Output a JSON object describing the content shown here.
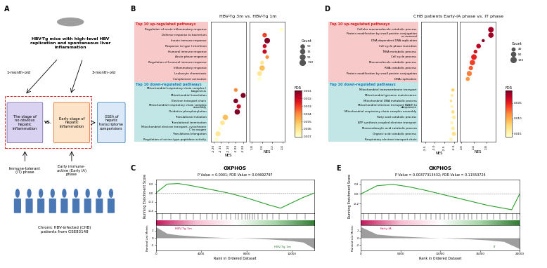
{
  "panel_labels": [
    "A",
    "B",
    "C",
    "D",
    "E"
  ],
  "diagram": {
    "mouse": "HBV-Tg mice with high-level HBV replication and spontaneous liver inflammation",
    "ages": [
      "1-month-old",
      "3-month-old"
    ],
    "stages": [
      "The stage of no obvious hepatic inflammation",
      "Early stage of hepatic inflammation"
    ],
    "vs": "VS.",
    "analysis": "GSEA of hepatic transcriptome comparisions",
    "phases": [
      "Immune-tolerant (IT) phase",
      "Early immune-active (Early IA) phase"
    ],
    "patients": "Chronic HBV-infected (CHB) patients from GSE83148"
  },
  "chart_data": [
    {
      "type": "dot",
      "title": "HBV-Tg 3m vs. HBV-Tg 1m",
      "x_label": "NES",
      "up": {
        "header": "Top 10 up-regulated pathways",
        "categories": [
          "Regulation of acute inflammatory response",
          "Defense response to bacterium",
          "Innate immune response",
          "Response to type I interferon",
          "Humoral immune response",
          "Acute phase response",
          "Regulation of humoral immune response",
          "Inflammatory response",
          "Leukocyte chemotaxis",
          "Complement activation"
        ],
        "nes": [
          2.38,
          2.05,
          2.1,
          2.05,
          2.05,
          2.1,
          2.0,
          2.0,
          1.95,
          1.95
        ],
        "count": [
          55,
          75,
          120,
          60,
          70,
          50,
          55,
          110,
          90,
          65
        ],
        "fdr": [
          0.007,
          0.003,
          0.001,
          0.002,
          0.002,
          0.004,
          0.006,
          0.005,
          0.006,
          0.007
        ],
        "xlim": [
          1.75,
          2.45
        ],
        "xticks": [
          1.8,
          2.0,
          2.2,
          2.4
        ]
      },
      "down": {
        "header": "Top 10 down-regulated pathways",
        "categories": [
          "Mitochondrial respiratory chain complex I biogenesis",
          "Mitochondrial translation",
          "Electron transport chain",
          "Mitochondrial respiratory chain complex assembly",
          "Oxidative phosphorylation",
          "Translational initiation",
          "Translational termination",
          "Mitochondrial electron transport, cytochrome C to oxygen",
          "Translational elongation",
          "Regulation of serine-type peptidase activity"
        ],
        "nes": [
          -2.05,
          -2.0,
          -2.05,
          -2.03,
          -2.04,
          -2.12,
          -2.14,
          -2.16,
          -2.17,
          -2.18
        ],
        "count": [
          55,
          95,
          80,
          70,
          110,
          110,
          80,
          50,
          95,
          60
        ],
        "fdr": [
          0.004,
          0.001,
          0.001,
          0.002,
          0.001,
          0.005,
          0.006,
          0.007,
          0.006,
          0.007
        ],
        "xlim": [
          -2.22,
          -1.98
        ],
        "xticks": [
          {
            "value": -2.2,
            "label": "-2.20"
          },
          -2.15,
          {
            "value": -2.1,
            "label": "-2.10"
          },
          -2.05,
          {
            "value": -2.0,
            "label": "-2.00"
          }
        ]
      },
      "size_legend": {
        "title": "Count",
        "values": [
          50,
          70,
          90,
          110
        ]
      },
      "colorbar": {
        "title": "FDR",
        "range": [
          0.001,
          0.007
        ],
        "ticks": [
          0.001,
          0.002,
          0.003,
          0.004,
          0.005,
          0.006,
          0.007
        ]
      }
    },
    {
      "type": "line",
      "title": "OXPHOS",
      "subtitle": "P Value < 0.0001; FDR Value = 0.04692797",
      "y_label": "Running Enrichment Score",
      "x_label": "Rank in Ordered Dataset",
      "color": "#2ca02c",
      "x": [
        0,
        1000,
        2000,
        3000,
        4000,
        5000,
        6000,
        7000,
        8000,
        9000,
        10000,
        11000,
        12000,
        13000,
        14000
      ],
      "values": [
        0.0,
        0.2,
        0.21,
        0.17,
        0.12,
        0.07,
        0.02,
        -0.04,
        -0.11,
        -0.19,
        -0.27,
        -0.34,
        -0.22,
        -0.1,
        0.0
      ],
      "xlim": [
        0,
        14000
      ],
      "xticks": [
        0,
        4000,
        8000,
        12000
      ],
      "ylim": [
        -0.45,
        0.3
      ],
      "yticks": [
        -0.4,
        -0.2,
        0.0,
        0.2
      ],
      "hits": [
        150,
        600,
        1300,
        2100,
        2700,
        3300,
        3900,
        4500,
        5000,
        5400,
        5800,
        6200,
        6600,
        7000,
        7300,
        7600,
        7900,
        8100,
        8300,
        8500,
        8700,
        9000,
        9400,
        9800,
        10300,
        10900,
        11600,
        12400,
        13200
      ],
      "metric": {
        "y_label": "Ranked List Metric",
        "x": [
          0,
          1000,
          2000,
          3000,
          4000,
          5000,
          6000,
          7000,
          8000,
          9000,
          10000,
          11000,
          12000,
          13000,
          14000
        ],
        "values": [
          3.0,
          1.2,
          0.8,
          0.55,
          0.35,
          0.2,
          0.08,
          0.0,
          -0.08,
          -0.2,
          -0.35,
          -0.55,
          -0.8,
          -1.2,
          -3.0
        ],
        "ylim": [
          -3.5,
          3.5
        ],
        "yticks": [
          -2,
          0,
          2
        ]
      },
      "groups": [
        "HBV-Tg 3m",
        "HBV-Tg 1m"
      ]
    },
    {
      "type": "dot",
      "title": "CHB patients Early-IA phase vs. IT phase",
      "x_label": "NES",
      "up": {
        "header": "Top 10 up-regulated pathways",
        "categories": [
          "Cellular macromolecule catabolic process",
          "Protein modification by small protein conjugation or removal",
          "DNA dependent DNA replication",
          "Cell cycle phase transition",
          "TRNA metabolic process",
          "Cell cycle process",
          "Macromolecule catabolic process",
          "RNA catabolic process",
          "Protein modification by small protein conjugation",
          "DNA replication"
        ],
        "nes": [
          2.95,
          2.95,
          2.7,
          2.55,
          2.45,
          2.4,
          2.35,
          2.3,
          2.25,
          2.2
        ],
        "count": [
          130,
          120,
          40,
          90,
          60,
          130,
          120,
          80,
          110,
          70
        ],
        "fdr": [
          0.002,
          0.002,
          0.001,
          0.003,
          0.004,
          0.005,
          0.006,
          0.007,
          0.008,
          0.009
        ],
        "xlim": [
          1.95,
          3.1
        ],
        "xticks": [
          2.0,
          2.4,
          2.8
        ]
      },
      "down": {
        "header": "Top 10 down-regulated pathways",
        "categories": [
          "Mitochondrial transmembrane transport",
          "Mitochondrial genome maintenance",
          "Mitochondrial DNA metabolic process",
          "Mitochondrial electron transport NADH to ubiquinone",
          "Mitochondrial respiratory chain complex assembly",
          "Fatty acid catabolic process",
          "ATP synthesis coupled electron transport",
          "Monocarboxylic acid catabolic process",
          "Organic acid catabolic process",
          "Respiratory electron transport chain"
        ],
        "nes": [
          -2.05,
          -2.1,
          -2.15,
          -2.1,
          -2.05,
          -2.0,
          -2.1,
          -2.05,
          -2.0,
          -2.15
        ],
        "count": [
          45,
          35,
          30,
          40,
          50,
          60,
          45,
          55,
          70,
          50
        ],
        "fdr": [
          0.012,
          0.014,
          0.013,
          0.015,
          0.013,
          0.014,
          0.015,
          0.014,
          0.013,
          0.015
        ],
        "xlim": [
          -3.7,
          -1.85
        ],
        "xticks": [
          -3.5,
          -3.0,
          -2.5,
          -2.0
        ]
      },
      "size_legend": {
        "title": "Count",
        "values": [
          40,
          80,
          120
        ]
      },
      "colorbar": {
        "title": "FDR",
        "range": [
          0.001,
          0.016
        ],
        "ticks": [
          0.005,
          {
            "value": 0.01,
            "label": "0.010"
          },
          0.015
        ]
      }
    },
    {
      "type": "line",
      "title": "OXPHOS",
      "subtitle": "P Value = 0.00377313432; FDR Value = 0.11553724",
      "y_label": "Running Enrichment Score",
      "x_label": "Rank in Ordered Dataset",
      "color": "#2ca02c",
      "x": [
        0,
        2000,
        4000,
        6000,
        8000,
        10000,
        12000,
        14000,
        16000,
        18000,
        19000,
        20000
      ],
      "values": [
        0.0,
        0.17,
        0.2,
        0.15,
        0.08,
        0.0,
        -0.08,
        -0.16,
        -0.24,
        -0.3,
        -0.33,
        0.0
      ],
      "xlim": [
        0,
        20000
      ],
      "xticks": [
        0,
        5000,
        10000,
        15000,
        20000
      ],
      "ylim": [
        -0.4,
        0.3
      ],
      "yticks": [
        -0.2,
        0.0,
        0.2
      ],
      "hits": [
        300,
        900,
        1800,
        2600,
        3500,
        4300,
        5200,
        6000,
        6800,
        7500,
        8200,
        8800,
        9400,
        10000,
        10500,
        11000,
        11500,
        12000,
        12500,
        13000,
        13500,
        14000,
        14600,
        15200,
        15900,
        16700,
        17500,
        18300,
        19100,
        19600
      ],
      "metric": {
        "y_label": "Ranked List Metric",
        "x": [
          0,
          2000,
          4000,
          6000,
          8000,
          10000,
          12000,
          14000,
          16000,
          18000,
          20000
        ],
        "values": [
          3.0,
          1.0,
          0.6,
          0.35,
          0.15,
          0.0,
          -0.15,
          -0.35,
          -0.6,
          -1.0,
          -3.0
        ],
        "ylim": [
          -3.5,
          3.5
        ],
        "yticks": [
          -2,
          0,
          2
        ]
      },
      "groups": [
        "Early-IA",
        "IT"
      ]
    }
  ]
}
